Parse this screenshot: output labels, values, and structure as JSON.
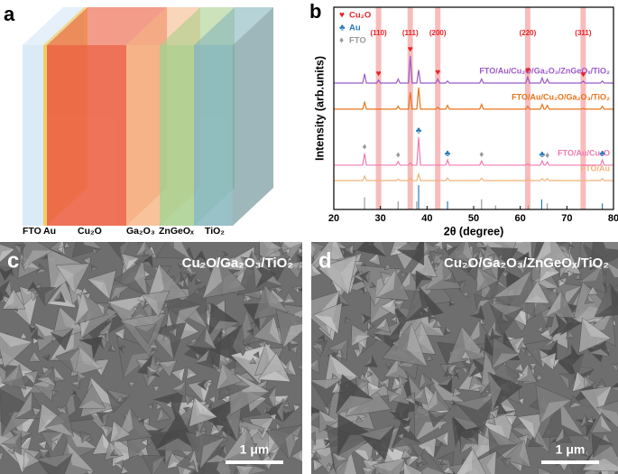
{
  "panel_labels": [
    "a",
    "b",
    "c",
    "d"
  ],
  "diagram": {
    "layers": [
      {
        "label": "FTO",
        "color": "#cfe3f5"
      },
      {
        "label": "Au",
        "color": "#f2c94c"
      },
      {
        "label": "Cu₂O",
        "color": "#ec5a3c"
      },
      {
        "label": "Ga₂O₃",
        "color": "#f7b98a"
      },
      {
        "label": "ZnGeOₓ",
        "color": "#a9d08e"
      },
      {
        "label": "TiO₂",
        "color": "#86b6be"
      }
    ]
  },
  "chart_data": {
    "type": "line",
    "x_label": "2θ (degree)",
    "y_label": "Intensity (arb.units)",
    "xlim": [
      20,
      80
    ],
    "xticks": [
      20,
      30,
      40,
      50,
      60,
      70,
      80
    ],
    "ylim": [
      0,
      100
    ],
    "x": [
      20,
      26.2,
      26.6,
      27.0,
      29.2,
      29.6,
      30.0,
      33.4,
      33.8,
      34.2,
      36.0,
      36.4,
      36.8,
      37.8,
      38.2,
      38.6,
      41.9,
      42.3,
      42.7,
      44.0,
      44.4,
      44.8,
      51.3,
      51.7,
      52.1,
      61.2,
      61.6,
      62.0,
      64.3,
      64.7,
      65.1,
      65.4,
      65.8,
      66.2,
      73.1,
      73.5,
      73.9,
      77.2,
      77.6,
      78.0,
      80
    ],
    "series": [
      {
        "name": "FTO/Au",
        "color": "#f2b27a",
        "values": [
          14.3,
          14.3,
          16.5,
          14.3,
          14.3,
          14.3,
          14.3,
          14.3,
          15,
          14.3,
          14.3,
          15.5,
          14.3,
          14.3,
          17.5,
          14.3,
          14.3,
          14.3,
          14.3,
          14.3,
          15.5,
          14.3,
          14.3,
          15.5,
          14.3,
          14.3,
          15,
          14.3,
          14.3,
          15.3,
          14.3,
          14.3,
          15.3,
          14.3,
          14.3,
          14.3,
          14.3,
          14.3,
          15.3,
          14.3,
          14.3
        ]
      },
      {
        "name": "FTO/Au/Cu₂O",
        "color": "#f07ab0",
        "values": [
          21.9,
          21.9,
          27.7,
          21.9,
          21.9,
          21.9,
          21.9,
          21.9,
          23.7,
          21.9,
          21.9,
          23,
          21.9,
          21.9,
          35.7,
          21.9,
          21.9,
          22,
          21.9,
          21.9,
          24.5,
          21.9,
          21.9,
          24,
          21.9,
          21.9,
          22.5,
          21.9,
          21.9,
          24,
          21.9,
          21.9,
          23.5,
          21.9,
          21.9,
          22,
          21.9,
          21.9,
          24.5,
          21.9,
          21.9
        ],
        "marked_peaks": [
          {
            "phase": "Au",
            "x": [
              38.2,
              44.4,
              64.7,
              77.6
            ]
          },
          {
            "phase": "FTO",
            "x": [
              26.6,
              33.8,
              51.7,
              65.8
            ]
          }
        ]
      },
      {
        "name": "FTO/Au/Cu₂O/Ga₂O₃/TiO₂",
        "color": "#e8731a",
        "values": [
          49.6,
          49.6,
          53,
          49.6,
          49.6,
          49.6,
          49.6,
          49.6,
          51,
          49.6,
          49.6,
          58,
          49.6,
          49.6,
          60.3,
          49.6,
          49.6,
          50.5,
          49.6,
          49.6,
          51.5,
          49.6,
          49.6,
          52,
          49.6,
          49.6,
          51,
          49.6,
          49.6,
          52,
          49.6,
          49.6,
          51.5,
          49.6,
          49.6,
          50,
          49.6,
          49.6,
          51,
          49.6,
          49.6
        ]
      },
      {
        "name": "FTO/Au/Cu₂O/Ga₂O₃/ZnGeOₓ/TiO₂",
        "color": "#9b59c8",
        "values": [
          62.5,
          62.5,
          67,
          62.5,
          62.5,
          64,
          62.5,
          62.5,
          64.5,
          62.5,
          62.5,
          76,
          62.5,
          62.5,
          69,
          62.5,
          62.5,
          64.5,
          62.5,
          62.5,
          63.5,
          62.5,
          62.5,
          64.5,
          62.5,
          62.5,
          65.5,
          62.5,
          62.5,
          65,
          62.5,
          62.5,
          64.5,
          62.5,
          62.5,
          63.5,
          62.5,
          62.5,
          63.5,
          62.5,
          62.5
        ],
        "marked_peaks": [
          {
            "phase": "Cu₂O",
            "x": [
              29.6,
              36.4,
              42.3,
              61.6,
              73.5
            ]
          }
        ]
      }
    ],
    "legend": [
      {
        "symbol": "♥",
        "name": "Cu₂O",
        "color": "#e8232a"
      },
      {
        "symbol": "♣",
        "name": "Au",
        "color": "#2a7ab8",
        "sticks_x": [
          38.2,
          44.4,
          64.6,
          77.6
        ],
        "sticks": [
          12,
          4,
          5,
          3
        ]
      },
      {
        "symbol": "♦",
        "name": "FTO",
        "color": "#999999",
        "sticks_x": [
          26.6,
          33.8,
          37.8,
          51.7,
          54.7,
          61.7,
          65.8
        ],
        "sticks": [
          6,
          4,
          4,
          5,
          2,
          2,
          3
        ]
      }
    ],
    "reflections": [
      {
        "label": "(110)",
        "x": 29.6
      },
      {
        "label": "(111)",
        "x": 36.4
      },
      {
        "label": "(200)",
        "x": 42.3
      },
      {
        "label": "(220)",
        "x": 61.6
      },
      {
        "label": "(311)",
        "x": 73.5
      }
    ],
    "reflection_color": "#f7b0b0"
  },
  "sem_images": [
    {
      "title": "Cu₂O/Ga₂O₃/TiO₂",
      "scale_bar": "1 μm"
    },
    {
      "title": "Cu₂O/Ga₂O₃/ZnGeOₓ/TiO₂",
      "scale_bar": "1 μm"
    }
  ]
}
